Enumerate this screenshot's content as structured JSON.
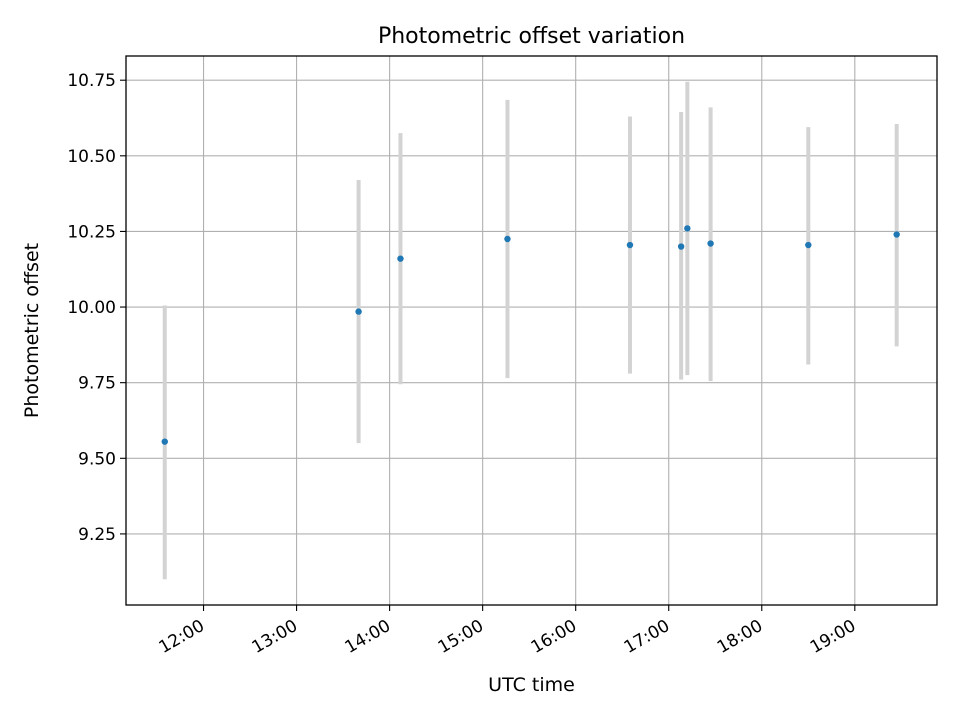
{
  "chart_data": {
    "type": "scatter",
    "title": "Photometric offset variation",
    "xlabel": "UTC time",
    "ylabel": "Photometric offset",
    "x_axis": "time",
    "xlim": [
      "11:10",
      "19:53"
    ],
    "ylim": [
      9.015,
      10.83
    ],
    "xticks": [
      "12:00",
      "13:00",
      "14:00",
      "15:00",
      "16:00",
      "17:00",
      "18:00",
      "19:00"
    ],
    "yticks": [
      9.25,
      9.5,
      9.75,
      10.0,
      10.25,
      10.5,
      10.75
    ],
    "ytick_labels": [
      "9.25",
      "9.50",
      "9.75",
      "10.00",
      "10.25",
      "10.50",
      "10.75"
    ],
    "grid": true,
    "marker_color": "#1f77b4",
    "errorbar_color": "#d3d3d3",
    "points": [
      {
        "time": "11:35",
        "y": 9.555,
        "ylow": 9.1,
        "yhigh": 10.005
      },
      {
        "time": "13:40",
        "y": 9.985,
        "ylow": 9.55,
        "yhigh": 10.42
      },
      {
        "time": "14:07",
        "y": 10.16,
        "ylow": 9.745,
        "yhigh": 10.575
      },
      {
        "time": "15:16",
        "y": 10.225,
        "ylow": 9.765,
        "yhigh": 10.685
      },
      {
        "time": "16:35",
        "y": 10.205,
        "ylow": 9.78,
        "yhigh": 10.63
      },
      {
        "time": "17:08",
        "y": 10.2,
        "ylow": 9.76,
        "yhigh": 10.645
      },
      {
        "time": "17:12",
        "y": 10.26,
        "ylow": 9.775,
        "yhigh": 10.745
      },
      {
        "time": "17:27",
        "y": 10.21,
        "ylow": 9.755,
        "yhigh": 10.66
      },
      {
        "time": "18:30",
        "y": 10.205,
        "ylow": 9.81,
        "yhigh": 10.595
      },
      {
        "time": "19:27",
        "y": 10.24,
        "ylow": 9.87,
        "yhigh": 10.605
      }
    ]
  }
}
